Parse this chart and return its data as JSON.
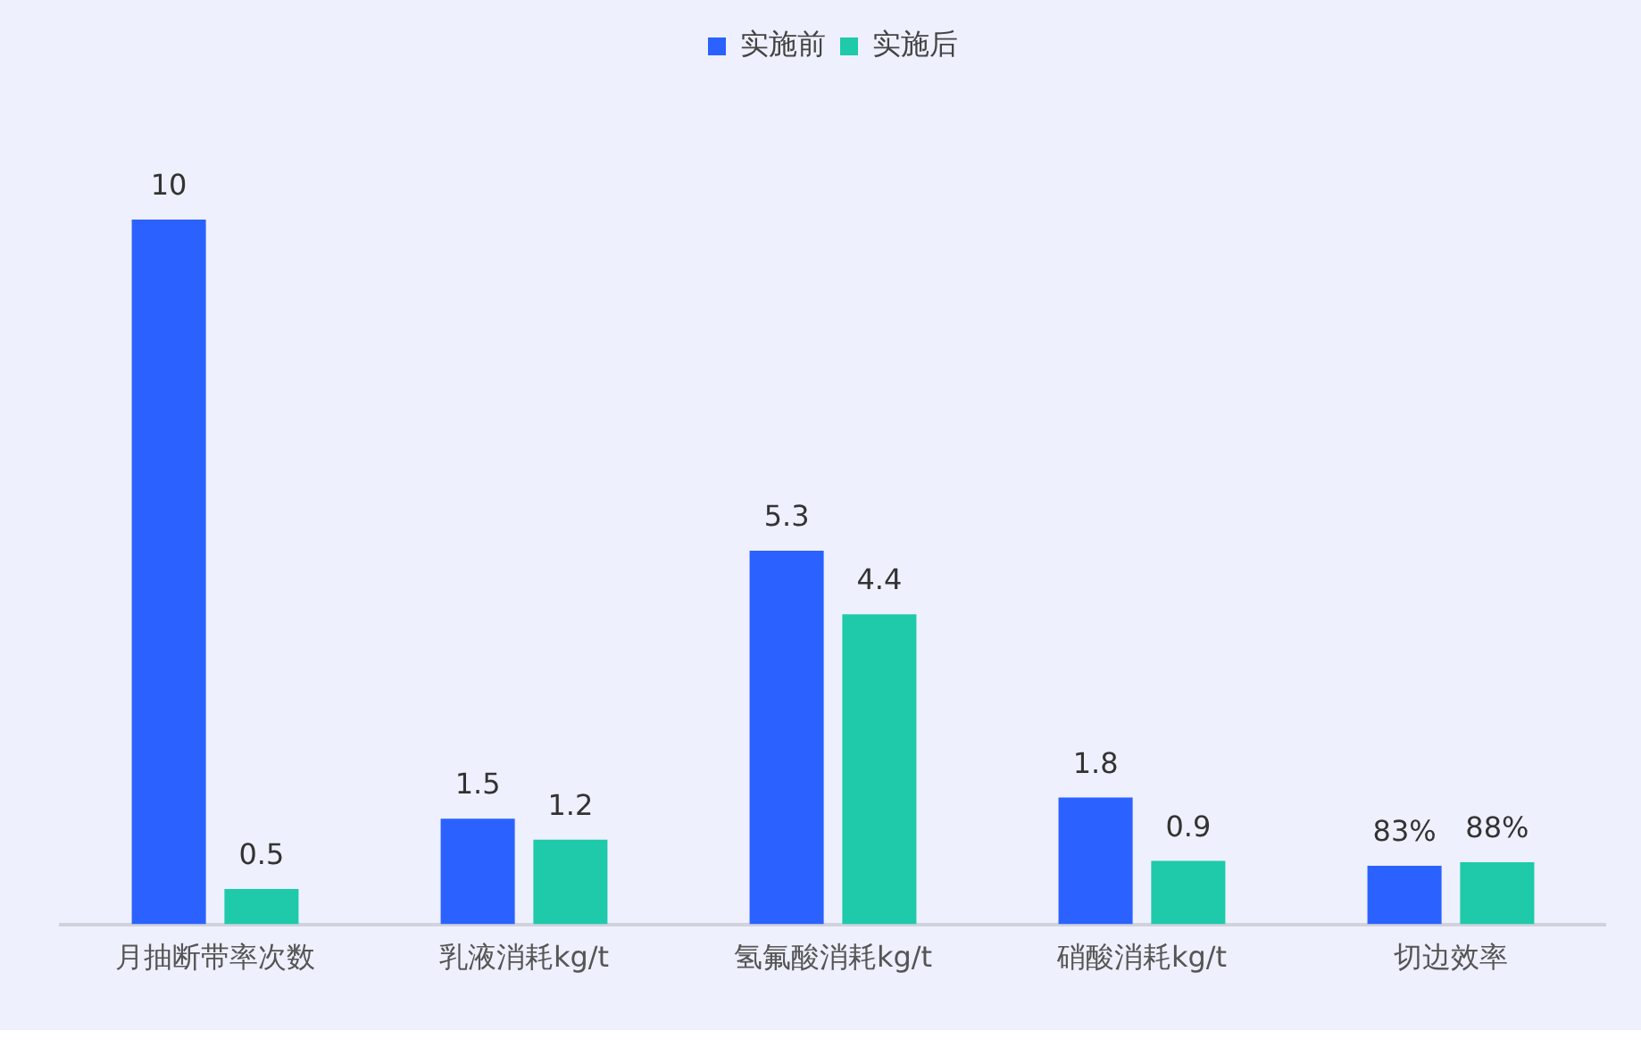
{
  "chart_data": {
    "type": "bar",
    "categories": [
      "月抽断带率次数",
      "乳液消耗kg/t",
      "氢氟酸消耗kg/t",
      "硝酸消耗kg/t",
      "切边效率"
    ],
    "series": [
      {
        "name": "实施前",
        "color": "#2b62ff",
        "values": [
          10,
          1.5,
          5.3,
          1.8,
          0.83
        ],
        "value_labels": [
          "10",
          "1.5",
          "5.3",
          "1.8",
          "83%"
        ]
      },
      {
        "name": "实施后",
        "color": "#1ecaa9",
        "values": [
          0.5,
          1.2,
          4.4,
          0.9,
          0.88
        ],
        "value_labels": [
          "0.5",
          "1.2",
          "4.4",
          "0.9",
          "88%"
        ]
      }
    ],
    "legend": "top",
    "grid": false
  }
}
